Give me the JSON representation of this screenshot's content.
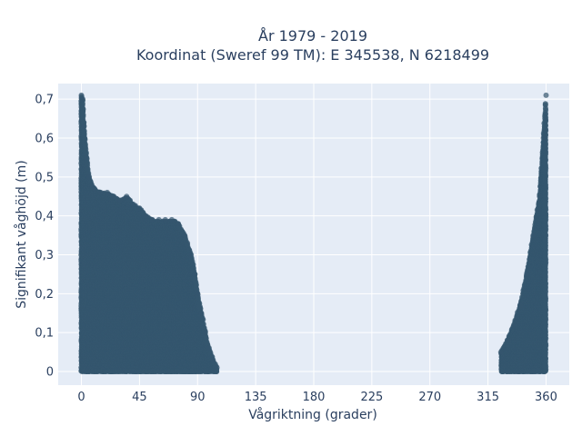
{
  "chart_data": {
    "type": "scatter",
    "title_lines": [
      "År 1979 - 2019",
      "Koordinat (Sweref 99 TM): E 345538, N 6218499"
    ],
    "xlabel": "Vågriktning (grader)",
    "ylabel": "Signifikant våghöjd (m)",
    "xlim": [
      -18,
      378
    ],
    "ylim": [
      -0.035,
      0.74
    ],
    "x_ticks": [
      0,
      45,
      90,
      135,
      180,
      225,
      270,
      315,
      360
    ],
    "x_tick_labels": [
      "0",
      "45",
      "90",
      "135",
      "180",
      "225",
      "270",
      "315",
      "360"
    ],
    "y_ticks": [
      0,
      0.1,
      0.2,
      0.3,
      0.4,
      0.5,
      0.6,
      0.7
    ],
    "y_tick_labels": [
      "0",
      "0,1",
      "0,2",
      "0,3",
      "0,4",
      "0,5",
      "0,6",
      "0,7"
    ],
    "grid": true,
    "legend": false,
    "series": [
      {
        "marker_color": "#34566e",
        "envelope": [
          [
            0,
            0.71
          ],
          [
            1,
            0.7
          ],
          [
            2,
            0.63
          ],
          [
            4,
            0.55
          ],
          [
            6,
            0.5
          ],
          [
            8,
            0.48
          ],
          [
            10,
            0.47
          ],
          [
            15,
            0.46
          ],
          [
            20,
            0.46
          ],
          [
            25,
            0.45
          ],
          [
            30,
            0.44
          ],
          [
            35,
            0.45
          ],
          [
            40,
            0.43
          ],
          [
            45,
            0.42
          ],
          [
            50,
            0.4
          ],
          [
            55,
            0.39
          ],
          [
            60,
            0.39
          ],
          [
            65,
            0.39
          ],
          [
            70,
            0.39
          ],
          [
            75,
            0.38
          ],
          [
            80,
            0.35
          ],
          [
            85,
            0.3
          ],
          [
            88,
            0.25
          ],
          [
            90,
            0.2
          ],
          [
            93,
            0.15
          ],
          [
            96,
            0.1
          ],
          [
            99,
            0.06
          ],
          [
            102,
            0.03
          ],
          [
            105,
            0.01
          ],
          [
            325,
            0.05
          ],
          [
            330,
            0.08
          ],
          [
            335,
            0.12
          ],
          [
            340,
            0.17
          ],
          [
            345,
            0.25
          ],
          [
            350,
            0.35
          ],
          [
            355,
            0.45
          ],
          [
            358,
            0.6
          ],
          [
            360,
            0.71
          ]
        ]
      }
    ]
  }
}
